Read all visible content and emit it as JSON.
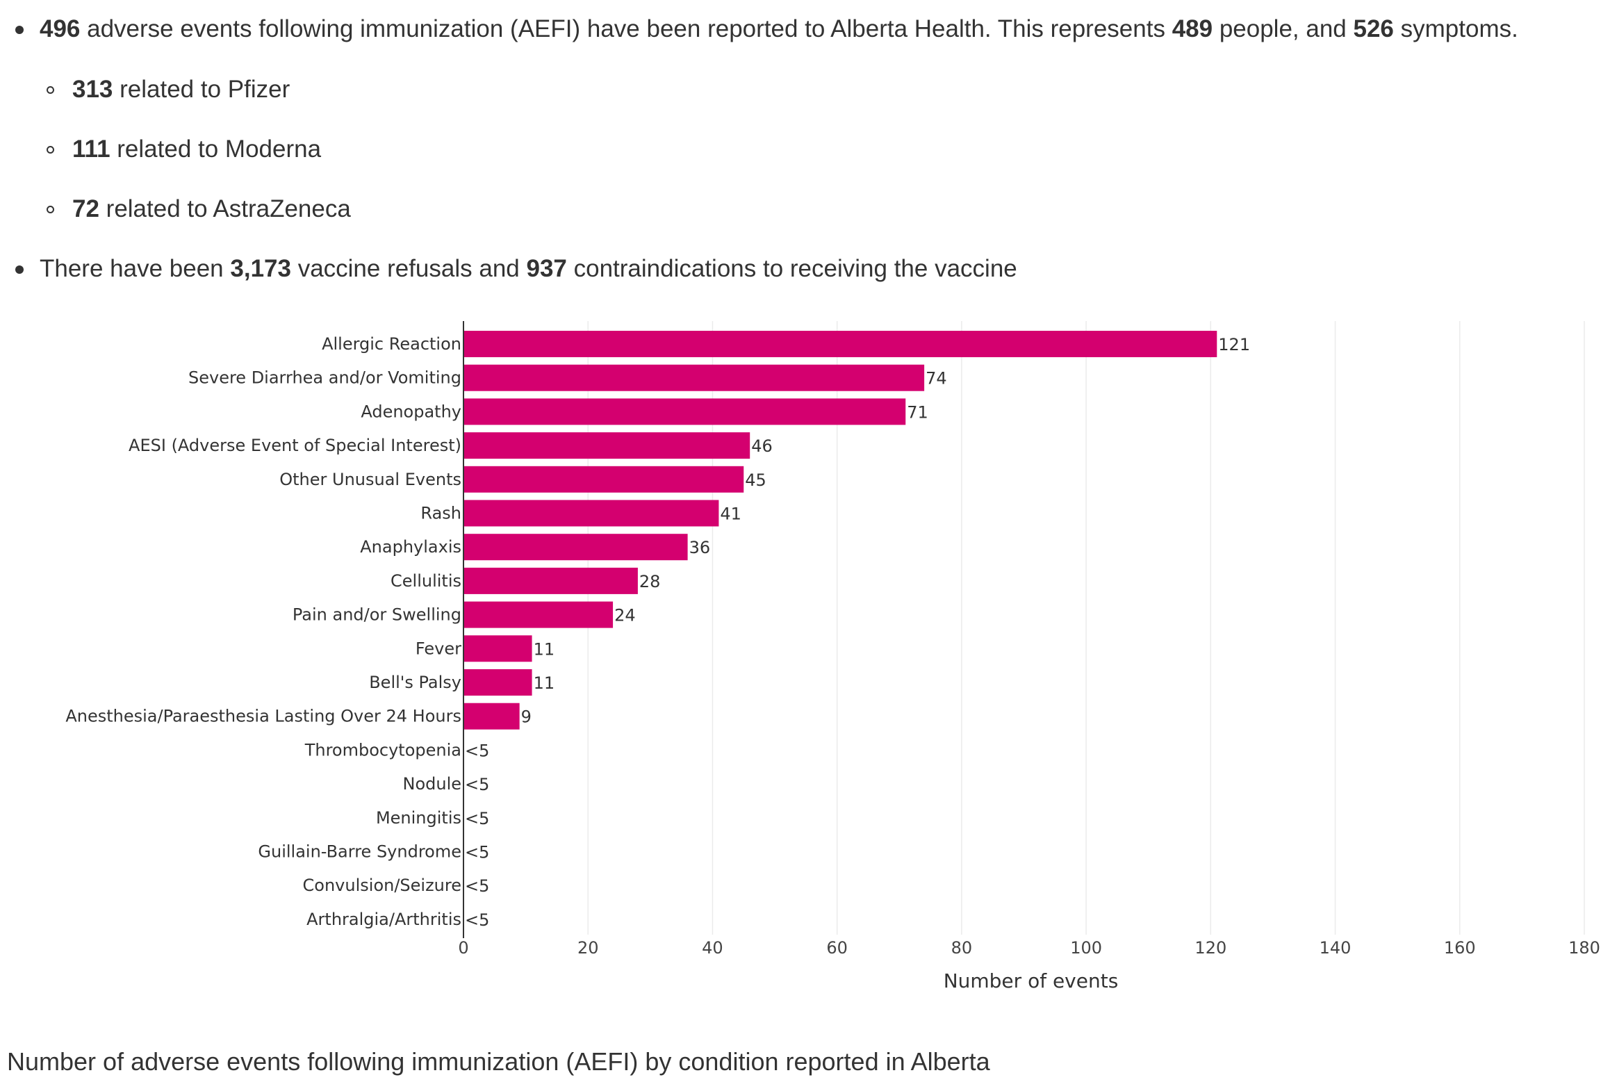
{
  "summary": {
    "line1": {
      "n1": "496",
      "t1": " adverse events following immunization (AEFI) have been reported to Alberta Health. This represents ",
      "n2": "489",
      "t2": " people, and ",
      "n3": "526",
      "t3": " symptoms."
    },
    "pfizer": {
      "n": "313",
      "t": " related to Pfizer"
    },
    "moderna": {
      "n": "111",
      "t": " related to Moderna"
    },
    "astrazeneca": {
      "n": "72",
      "t": " related to AstraZeneca"
    },
    "line2": {
      "t1": "There have been ",
      "n1": "3,173",
      "t2": " vaccine refusals and ",
      "n2": "937",
      "t3": " contraindications to receiving the vaccine"
    }
  },
  "chart_data": {
    "type": "bar",
    "orientation": "horizontal",
    "categories": [
      "Allergic Reaction",
      "Severe Diarrhea and/or Vomiting",
      "Adenopathy",
      "AESI (Adverse Event of Special Interest)",
      "Other Unusual Events",
      "Rash",
      "Anaphylaxis",
      "Cellulitis",
      "Pain and/or Swelling",
      "Fever",
      "Bell's Palsy",
      "Anesthesia/Paraesthesia Lasting Over 24 Hours",
      "Thrombocytopenia",
      "Nodule",
      "Meningitis",
      "Guillain-Barre Syndrome",
      "Convulsion/Seizure",
      "Arthralgia/Arthritis"
    ],
    "values": [
      121,
      74,
      71,
      46,
      45,
      41,
      36,
      28,
      24,
      11,
      11,
      9,
      0,
      0,
      0,
      0,
      0,
      0
    ],
    "data_labels": [
      "121",
      "74",
      "71",
      "46",
      "45",
      "41",
      "36",
      "28",
      "24",
      "11",
      "11",
      "9",
      "<5",
      "<5",
      "<5",
      "<5",
      "<5",
      "<5"
    ],
    "xlabel": "Number of events",
    "ylabel": "",
    "xlim": [
      0,
      180
    ],
    "xticks": [
      0,
      20,
      40,
      60,
      80,
      100,
      120,
      140,
      160,
      180
    ],
    "grid": true,
    "bar_color": "#d4006f",
    "caption": "Number of adverse events following immunization (AEFI) by condition reported in Alberta"
  }
}
